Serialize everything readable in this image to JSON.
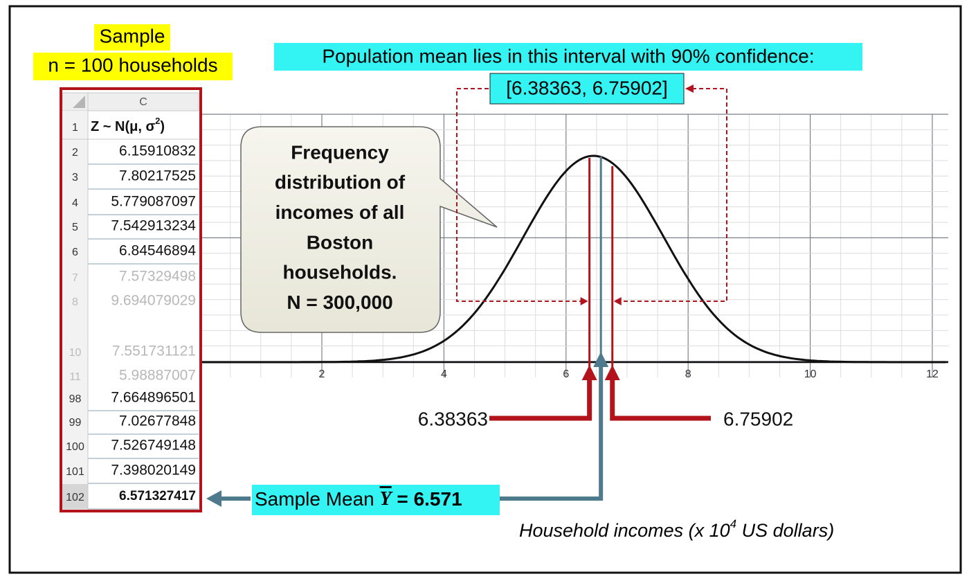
{
  "sample_label": {
    "line1": "Sample",
    "line2": "n = 100 households"
  },
  "sheet": {
    "column": "C",
    "header": {
      "row": "1",
      "text_main": "Z ~ N(μ, σ",
      "text_sup": "2",
      "text_end": ")"
    },
    "rows": [
      {
        "row": "2",
        "value": "6.15910832"
      },
      {
        "row": "3",
        "value": "7.80217525"
      },
      {
        "row": "4",
        "value": "5.779087097"
      },
      {
        "row": "5",
        "value": "7.542913234"
      },
      {
        "row": "6",
        "value": "6.84546894"
      },
      {
        "row": "7",
        "value": "7.57329498"
      },
      {
        "row": "8",
        "value": "9.694079029"
      },
      {
        "row": "10",
        "value": "7.551731121"
      },
      {
        "row": "11",
        "value": "5.98887007"
      },
      {
        "row": "98",
        "value": "7.664896501"
      },
      {
        "row": "99",
        "value": "7.02677848"
      },
      {
        "row": "100",
        "value": "7.526749148"
      },
      {
        "row": "101",
        "value": "7.398020149"
      },
      {
        "row": "102",
        "value": "6.571327417"
      }
    ]
  },
  "interval": {
    "title": "Population mean lies in this interval with 90% confidence:",
    "text": "[6.38363, 6.75902]",
    "lower": 6.38363,
    "upper": 6.75902
  },
  "bubble": [
    "Frequency",
    "distribution of",
    "incomes of all",
    "Boston",
    "households.",
    "N = 300,000"
  ],
  "sample_mean": {
    "label": "Sample Mean ",
    "symbol": "Y",
    "equals": " = ",
    "value": 6.571
  },
  "axis": {
    "ticks": [
      2,
      4,
      6,
      8,
      10,
      12
    ],
    "title_main": "Household incomes (x 10",
    "title_sup": "4",
    "title_end": " US dollars)"
  }
}
